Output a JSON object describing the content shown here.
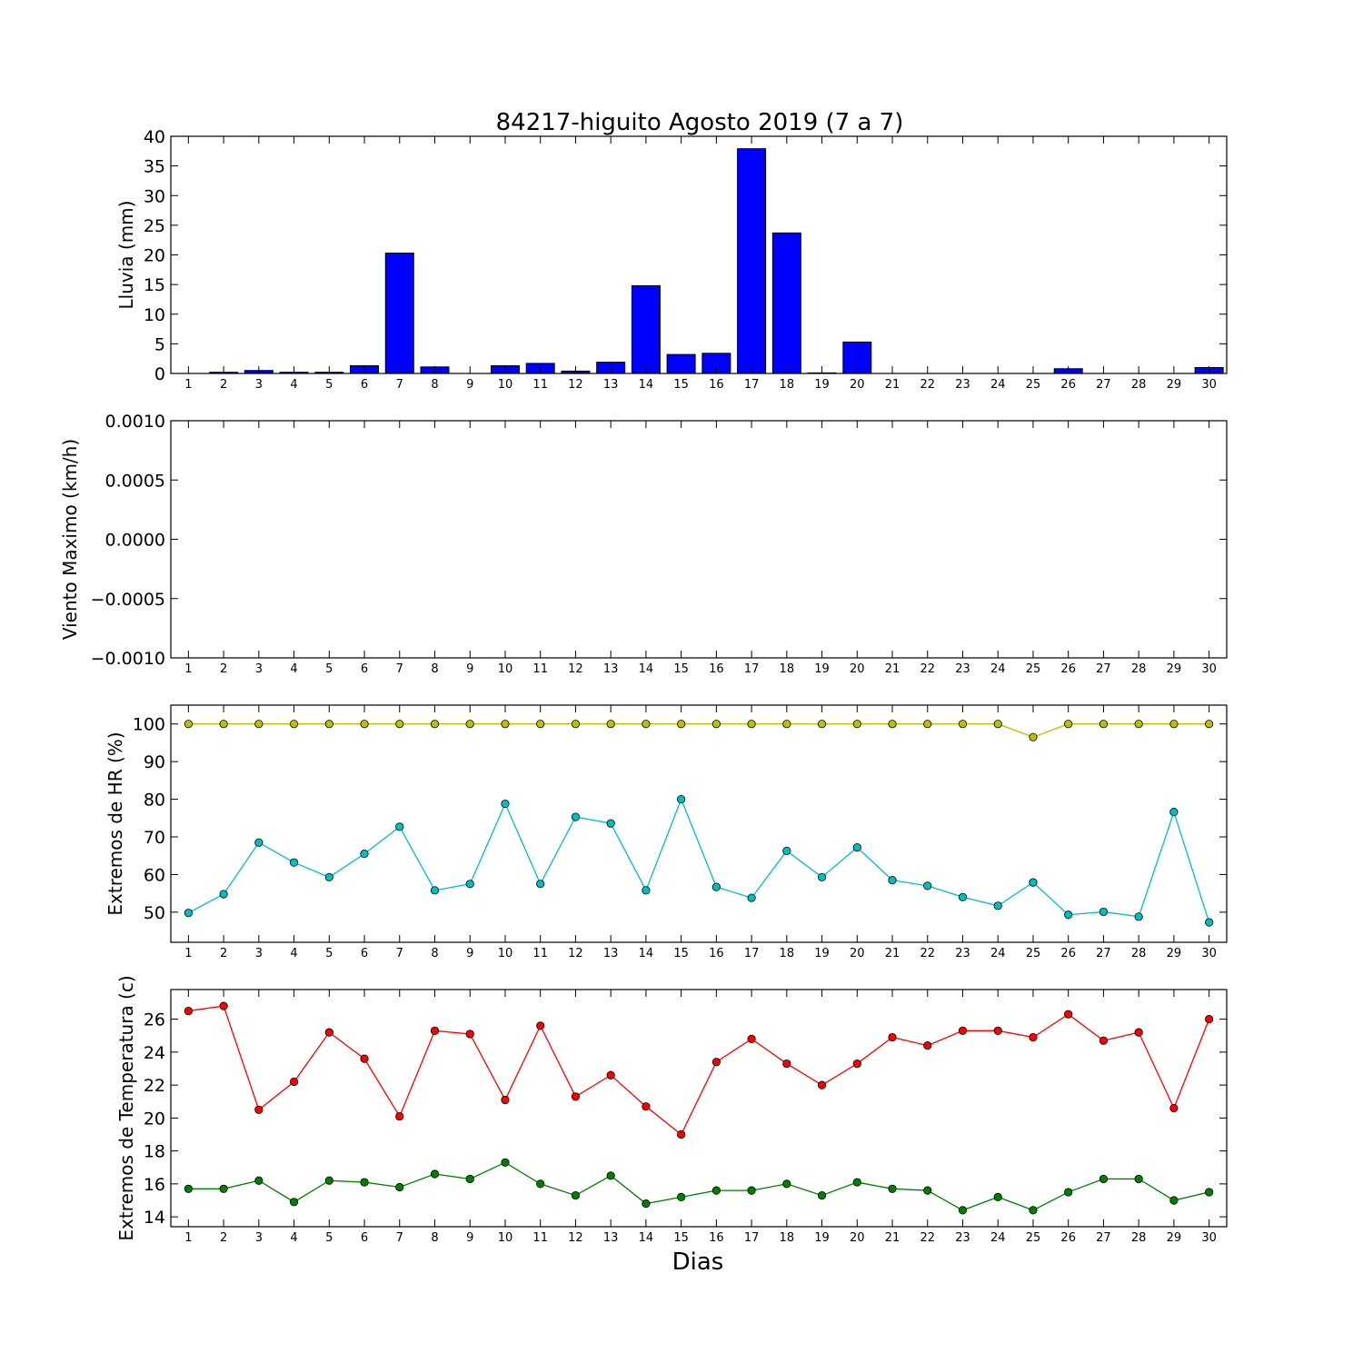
{
  "chart_data": {
    "title": "84217-higuito Agosto 2019  (7 a 7)",
    "xlabel": "Dias",
    "days": [
      1,
      2,
      3,
      4,
      5,
      6,
      7,
      8,
      9,
      10,
      11,
      12,
      13,
      14,
      15,
      16,
      17,
      18,
      19,
      20,
      21,
      22,
      23,
      24,
      25,
      26,
      27,
      28,
      29,
      30
    ],
    "panels": [
      {
        "type": "bar",
        "ylabel": "Lluvia (mm)",
        "ylim": [
          0,
          40
        ],
        "yticks": [
          0,
          5,
          10,
          15,
          20,
          25,
          30,
          35,
          40
        ],
        "ytick_labels": [
          "0",
          "5",
          "10",
          "15",
          "20",
          "25",
          "30",
          "35",
          "40"
        ],
        "series": [
          {
            "color": "#0000ff",
            "values": [
              0.0,
              0.2,
              0.5,
              0.2,
              0.2,
              1.3,
              20.3,
              1.1,
              0.0,
              1.3,
              1.7,
              0.4,
              1.9,
              14.8,
              3.2,
              3.4,
              37.9,
              23.7,
              0.1,
              5.3,
              0.0,
              0.0,
              0.0,
              0.0,
              0.0,
              0.8,
              0.0,
              0.0,
              0.0,
              1.0
            ]
          }
        ]
      },
      {
        "type": "line",
        "ylabel": "Viento Maximo (km/h)",
        "ylim": [
          -0.001,
          0.001
        ],
        "yticks": [
          -0.001,
          -0.0005,
          0.0,
          0.0005,
          0.001
        ],
        "ytick_labels": [
          "−0.0010",
          "−0.0005",
          "0.0000",
          "0.0005",
          "0.0010"
        ],
        "series": []
      },
      {
        "type": "line",
        "ylabel": "Extremos de HR (%)",
        "ylim": [
          42,
          105
        ],
        "yticks": [
          50,
          60,
          70,
          80,
          90,
          100
        ],
        "ytick_labels": [
          "50",
          "60",
          "70",
          "80",
          "90",
          "100"
        ],
        "series": [
          {
            "color": "#bfbf00",
            "values": [
              100,
              100,
              100,
              100,
              100,
              100,
              100,
              100,
              100,
              100,
              100,
              100,
              100,
              100,
              100,
              100,
              100,
              100,
              100,
              100,
              100,
              100,
              100,
              100,
              96.5,
              100,
              100,
              100,
              100,
              100
            ]
          },
          {
            "color": "#00bfbf",
            "values": [
              49.8,
              54.8,
              68.5,
              63.2,
              59.3,
              65.5,
              72.7,
              55.8,
              57.5,
              78.8,
              57.5,
              75.3,
              73.6,
              55.8,
              80.0,
              56.7,
              53.8,
              66.3,
              59.3,
              67.2,
              58.5,
              57.0,
              54.0,
              51.7,
              57.9,
              49.3,
              50.1,
              48.8,
              76.6,
              47.3
            ]
          }
        ]
      },
      {
        "type": "line",
        "ylabel": "Extremos de Temperatura (c)",
        "ylim": [
          13.4,
          27.8
        ],
        "yticks": [
          14,
          16,
          18,
          20,
          22,
          24,
          26
        ],
        "ytick_labels": [
          "14",
          "16",
          "18",
          "20",
          "22",
          "24",
          "26"
        ],
        "series": [
          {
            "color": "#ff0000",
            "values": [
              26.5,
              26.8,
              20.5,
              22.2,
              25.2,
              23.6,
              20.1,
              25.3,
              25.1,
              21.1,
              25.6,
              21.3,
              22.6,
              20.7,
              19.0,
              23.4,
              24.8,
              23.3,
              22.0,
              23.3,
              24.9,
              24.4,
              25.3,
              25.3,
              24.9,
              26.3,
              24.7,
              25.2,
              20.6,
              26.0
            ]
          },
          {
            "color": "#008000",
            "values": [
              15.7,
              15.7,
              16.2,
              14.9,
              16.2,
              16.1,
              15.8,
              16.6,
              16.3,
              17.3,
              16.0,
              15.3,
              16.5,
              14.8,
              15.2,
              15.6,
              15.6,
              16.0,
              15.3,
              16.1,
              15.7,
              15.6,
              14.4,
              15.2,
              14.4,
              15.5,
              16.3,
              16.3,
              15.0,
              15.5
            ]
          }
        ]
      }
    ]
  }
}
